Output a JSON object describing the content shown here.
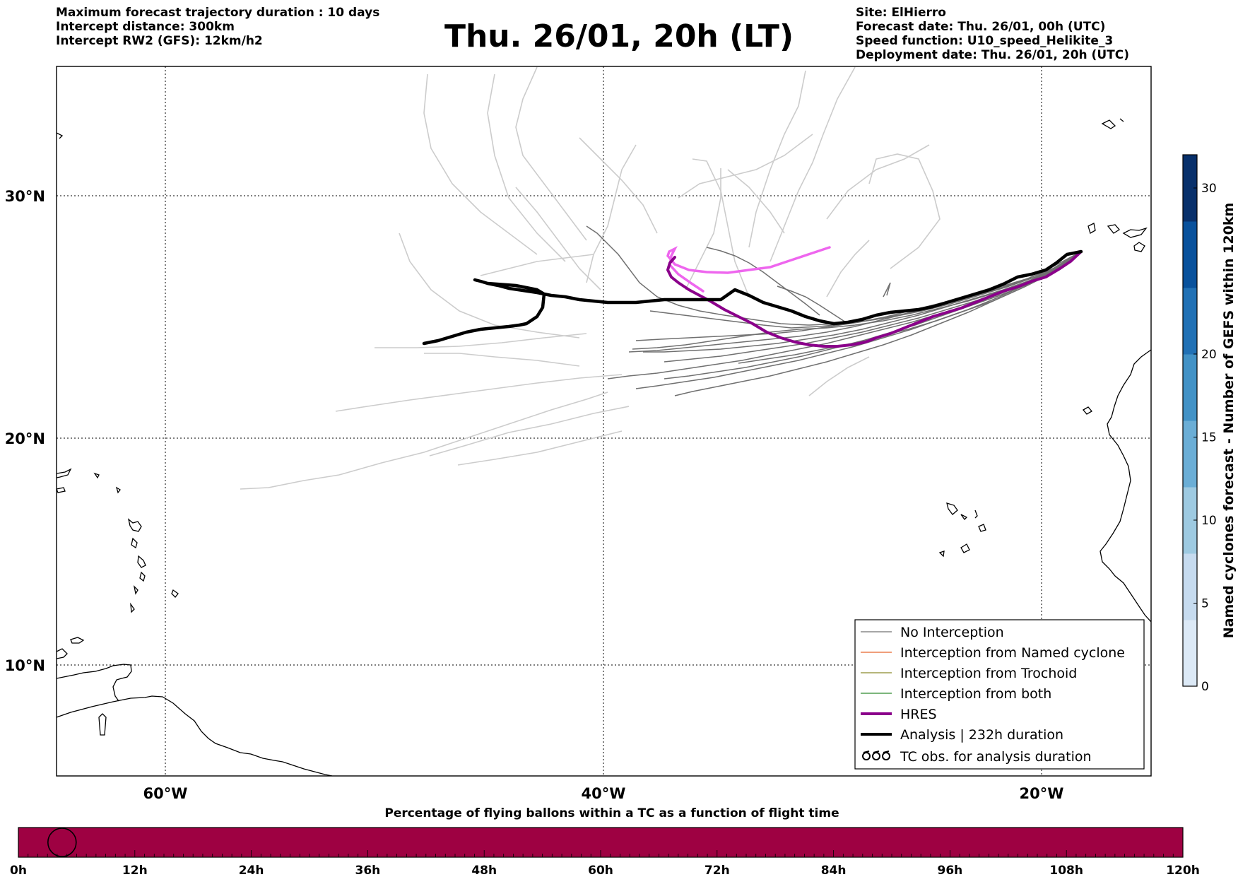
{
  "header": {
    "left_lines": [
      "Maximum forecast trajectory duration : 10 days",
      "Intercept distance: 300km",
      "Intercept RW2 (GFS):  12km/h2"
    ],
    "title": "Thu. 26/01, 20h (LT)",
    "right_lines": [
      "Site: ElHierro",
      "Forecast date: Thu. 26/01, 00h (UTC)",
      "Speed function: U10_speed_Helikite_3",
      "Deployment date: Thu. 26/01, 20h (UTC)"
    ]
  },
  "map": {
    "lon_labels": [
      "60°W",
      "40°W",
      "20°W"
    ],
    "lat_labels": [
      "30°N",
      "20°N",
      "10°N"
    ],
    "colors": {
      "no_interception": "#707070",
      "named_cyclone": "#e8642c",
      "trochoid": "#8a8a2a",
      "both": "#2e8b2e",
      "hres": "#8b008b",
      "analysis": "#000000",
      "hres_late": "#ee66ee",
      "gefs_light": "#cccccc"
    }
  },
  "legend": {
    "items": [
      {
        "label": "No Interception",
        "symbol": "thin-line",
        "color": "#707070"
      },
      {
        "label": "Interception from Named cyclone",
        "symbol": "thin-line",
        "color": "#e8642c"
      },
      {
        "label": "Interception from Trochoid",
        "symbol": "thin-line",
        "color": "#8a8a2a"
      },
      {
        "label": "Interception from both",
        "symbol": "thin-line",
        "color": "#2e8b2e"
      },
      {
        "label": "HRES",
        "symbol": "thick-line",
        "color": "#8b008b"
      },
      {
        "label": "Analysis | 232h duration",
        "symbol": "thick-line",
        "color": "#000000"
      },
      {
        "label": "TC obs. for analysis duration",
        "symbol": "cyclone-icons",
        "color": "#000000"
      }
    ]
  },
  "colorbar": {
    "label": "Named cyclones forecast - Number of GEFS within 120km",
    "ticks": [
      "0",
      "5",
      "10",
      "15",
      "20",
      "30"
    ],
    "range": [
      0,
      32
    ],
    "colors": [
      "#dce9f6",
      "#c6dbef",
      "#9ecae1",
      "#6baed6",
      "#4292c6",
      "#2171b5",
      "#08519c",
      "#08306b"
    ]
  },
  "timebar": {
    "title": "Percentage of flying ballons within a TC as a function of flight time",
    "ticks": [
      "0h",
      "12h",
      "24h",
      "36h",
      "48h",
      "60h",
      "72h",
      "84h",
      "96h",
      "108h",
      "120h"
    ],
    "fill_color": "#9e0142",
    "marker_hour": 4.5
  }
}
